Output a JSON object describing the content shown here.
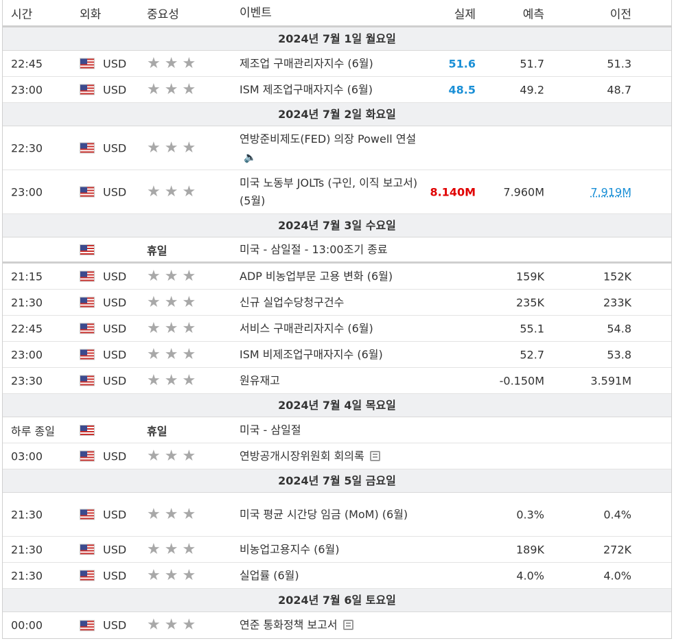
{
  "header": {
    "time": "시간",
    "currency": "외화",
    "importance": "중요성",
    "event": "이벤트",
    "actual": "실제",
    "forecast": "예측",
    "previous": "이전"
  },
  "days": [
    {
      "label": "2024년 7월 1일 월요일",
      "events": [
        {
          "time": "22:45",
          "currency": "USD",
          "event": "제조업 구매관리자지수 (6월)",
          "actual": "51.6",
          "forecast": "51.7",
          "previous": "51.3"
        },
        {
          "time": "23:00",
          "currency": "USD",
          "event": "ISM 제조업구매자지수 (6월)",
          "actual": "48.5",
          "forecast": "49.2",
          "previous": "48.7"
        }
      ]
    },
    {
      "label": "2024년 7월 2일 화요일",
      "events": [
        {
          "time": "22:30",
          "currency": "USD",
          "event": "연방준비제도(FED) 의장 Powell 연설",
          "actual": "",
          "forecast": "",
          "previous": ""
        },
        {
          "time": "23:00",
          "currency": "USD",
          "event": "미국 노동부 JOLTs (구인, 이직 보고서) (5월)",
          "actual": "8.140M",
          "forecast": "7.960M",
          "previous": "7.919M"
        }
      ]
    },
    {
      "label": "2024년 7월 3일 수요일",
      "holiday": {
        "time": "",
        "label": "휴일",
        "event": "미국 - 삼일절 - 13:00조기 종료"
      },
      "events": [
        {
          "time": "21:15",
          "currency": "USD",
          "event": "ADP 비농업부문 고용 변화 (6월)",
          "actual": "",
          "forecast": "159K",
          "previous": "152K"
        },
        {
          "time": "21:30",
          "currency": "USD",
          "event": "신규 실업수당청구건수",
          "actual": "",
          "forecast": "235K",
          "previous": "233K"
        },
        {
          "time": "22:45",
          "currency": "USD",
          "event": "서비스 구매관리자지수 (6월)",
          "actual": "",
          "forecast": "55.1",
          "previous": "54.8"
        },
        {
          "time": "23:00",
          "currency": "USD",
          "event": "ISM 비제조업구매자지수 (6월)",
          "actual": "",
          "forecast": "52.7",
          "previous": "53.8"
        },
        {
          "time": "23:30",
          "currency": "USD",
          "event": "원유재고",
          "actual": "",
          "forecast": "-0.150M",
          "previous": "3.591M"
        }
      ]
    },
    {
      "label": "2024년 7월 4일 목요일",
      "holiday": {
        "time": "하루 종일",
        "label": "휴일",
        "event": "미국 - 삼일절"
      },
      "events": [
        {
          "time": "03:00",
          "currency": "USD",
          "event": "연방공개시장위원회 회의록",
          "actual": "",
          "forecast": "",
          "previous": ""
        }
      ]
    },
    {
      "label": "2024년 7월 5일 금요일",
      "events": [
        {
          "time": "21:30",
          "currency": "USD",
          "event": "미국 평균 시간당 임금 (MoM) (6월)",
          "actual": "",
          "forecast": "0.3%",
          "previous": "0.4%"
        },
        {
          "time": "21:30",
          "currency": "USD",
          "event": "비농업고용지수 (6월)",
          "actual": "",
          "forecast": "189K",
          "previous": "272K"
        },
        {
          "time": "21:30",
          "currency": "USD",
          "event": "실업률 (6월)",
          "actual": "",
          "forecast": "4.0%",
          "previous": "4.0%"
        }
      ]
    },
    {
      "label": "2024년 7월 6일 토요일",
      "events": [
        {
          "time": "00:00",
          "currency": "USD",
          "event": "연준 통화정책 보고서",
          "actual": "",
          "forecast": "",
          "previous": ""
        }
      ]
    }
  ],
  "colors": {
    "actual_better": "#1a8fd6",
    "actual_worse": "#e00000",
    "link": "#1a8fd6"
  }
}
